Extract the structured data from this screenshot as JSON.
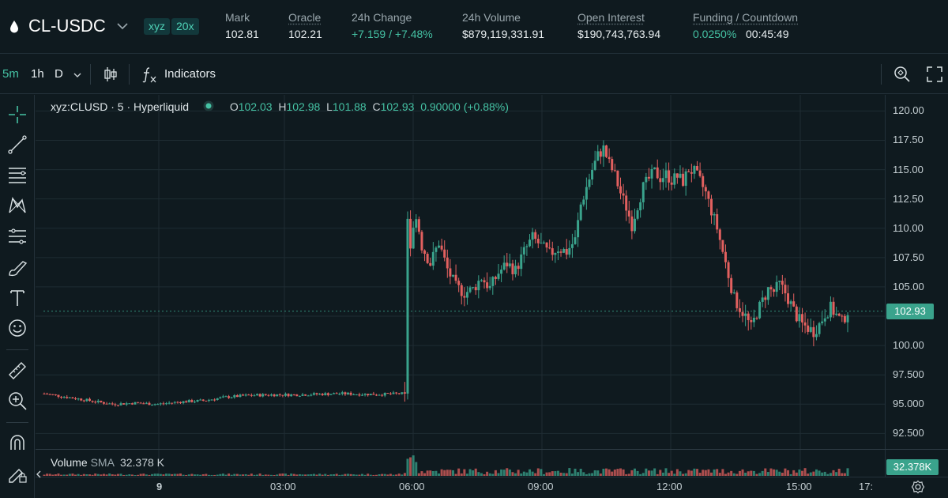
{
  "header": {
    "symbol": "CL-USDC",
    "dex_badge": "xyz",
    "leverage_badge": "20x",
    "stats": [
      {
        "label": "Mark",
        "value": "102.81"
      },
      {
        "label": "Oracle",
        "value": "102.21"
      },
      {
        "label": "24h Change",
        "value": "+7.159 / +7.48%"
      },
      {
        "label": "24h Volume",
        "value": "$879,119,331.91"
      },
      {
        "label": "Open Interest",
        "value": "$190,743,763.94"
      },
      {
        "label": "Funding / Countdown",
        "value": "0.0250%",
        "value2": "00:45:49"
      }
    ]
  },
  "toolbar": {
    "timeframes": [
      "5m",
      "1h",
      "D"
    ],
    "indicators_label": "Indicators"
  },
  "legend": {
    "title": "xyz:CLUSD · 5 · Hyperliquid",
    "o_label": "O",
    "o": "102.03",
    "h_label": "H",
    "h": "102.98",
    "l_label": "L",
    "l": "101.88",
    "c_label": "C",
    "c": "102.93",
    "change": "0.90000 (+0.88%)"
  },
  "volume_legend": {
    "label": "Volume",
    "sma_label": "SMA",
    "sma_value": "32.378 K",
    "tag": "32.378K"
  },
  "last_price_tag": "102.93",
  "colors": {
    "up": "#3aa38c",
    "down": "#e2605f",
    "accent": "#45c2a4",
    "background": "#0f1a1f"
  },
  "icons": [
    "drop-icon",
    "chevron-down-icon",
    "candle-style-icon",
    "fx-icon",
    "search-settings-icon",
    "fullscreen-icon",
    "crosshair-icon",
    "trendline-icon",
    "horizontal-lines-icon",
    "pattern-icon",
    "fib-icon",
    "brush-icon",
    "text-icon",
    "emoji-icon",
    "ruler-icon",
    "zoom-in-icon",
    "magnet-icon",
    "lock-pencil-icon",
    "chevron-left-icon",
    "settings-gear-icon"
  ],
  "chart_data": {
    "type": "candlestick",
    "price_axis": [
      "120.00",
      "117.50",
      "115.00",
      "112.50",
      "110.00",
      "107.50",
      "105.00",
      "102.50",
      "100.00",
      "97.500",
      "95.000",
      "92.500"
    ],
    "ylim": [
      91.75,
      120.6
    ],
    "time_axis": [
      "9",
      "03:00",
      "06:00",
      "09:00",
      "12:00",
      "15:00",
      "17:"
    ],
    "last_price": 102.93,
    "series_desc": "CLUSD 5m candles: flat near 95.5-96 until 06:00, spike to ~111.5, then range 104-110, rally to ~117.5 near 10:30, plateau ~114-115.5 until ~13:00, drop to ~101-103 through 16:00",
    "path": [
      [
        0,
        95.9
      ],
      [
        8,
        95.6
      ],
      [
        16,
        95.3
      ],
      [
        24,
        95.0
      ],
      [
        32,
        95.1
      ],
      [
        40,
        95.0
      ],
      [
        48,
        95.2
      ],
      [
        56,
        95.3
      ],
      [
        64,
        95.6
      ],
      [
        72,
        95.75
      ],
      [
        80,
        95.8
      ],
      [
        88,
        95.8
      ],
      [
        96,
        95.85
      ],
      [
        104,
        95.9
      ],
      [
        112,
        95.85
      ],
      [
        120,
        95.85
      ],
      [
        126,
        95.9
      ],
      [
        128,
        99.5
      ],
      [
        129,
        108.5
      ],
      [
        131,
        111.2
      ],
      [
        133,
        108.5
      ],
      [
        136,
        107.0
      ],
      [
        139,
        108.8
      ],
      [
        142,
        106.5
      ],
      [
        145,
        105.0
      ],
      [
        148,
        104.5
      ],
      [
        151,
        104.8
      ],
      [
        154,
        105.8
      ],
      [
        157,
        104.9
      ],
      [
        160,
        106.2
      ],
      [
        163,
        107.0
      ],
      [
        166,
        106.4
      ],
      [
        169,
        108.0
      ],
      [
        172,
        109.2
      ],
      [
        175,
        108.5
      ],
      [
        178,
        107.8
      ],
      [
        181,
        108.3
      ],
      [
        184,
        108.0
      ],
      [
        187,
        109.0
      ],
      [
        189,
        112.0
      ],
      [
        191,
        113.5
      ],
      [
        193,
        115.0
      ],
      [
        195,
        116.2
      ],
      [
        197,
        116.8
      ],
      [
        199,
        115.5
      ],
      [
        201,
        114.5
      ],
      [
        203,
        113.0
      ],
      [
        205,
        111.8
      ],
      [
        207,
        110.3
      ],
      [
        209,
        112.0
      ],
      [
        211,
        113.5
      ],
      [
        213,
        114.2
      ],
      [
        215,
        114.8
      ],
      [
        217,
        114.3
      ],
      [
        219,
        114.6
      ],
      [
        221,
        114.1
      ],
      [
        223,
        114.4
      ],
      [
        225,
        114.0
      ],
      [
        227,
        115.0
      ],
      [
        229,
        114.8
      ],
      [
        231,
        114.0
      ],
      [
        233,
        113.0
      ],
      [
        235,
        111.5
      ],
      [
        237,
        110.0
      ],
      [
        239,
        108.0
      ],
      [
        241,
        106.0
      ],
      [
        243,
        104.0
      ],
      [
        245,
        103.2
      ],
      [
        247,
        102.5
      ],
      [
        249,
        101.5
      ],
      [
        251,
        102.8
      ],
      [
        253,
        103.8
      ],
      [
        255,
        104.8
      ],
      [
        257,
        104.6
      ],
      [
        259,
        105.2
      ],
      [
        261,
        104.5
      ],
      [
        263,
        103.5
      ],
      [
        265,
        102.5
      ],
      [
        267,
        101.8
      ],
      [
        269,
        101.5
      ],
      [
        271,
        101.2
      ],
      [
        273,
        101.8
      ],
      [
        275,
        102.7
      ],
      [
        277,
        103.2
      ],
      [
        279,
        102.6
      ],
      [
        281,
        102.0
      ],
      [
        283,
        102.93
      ]
    ]
  }
}
